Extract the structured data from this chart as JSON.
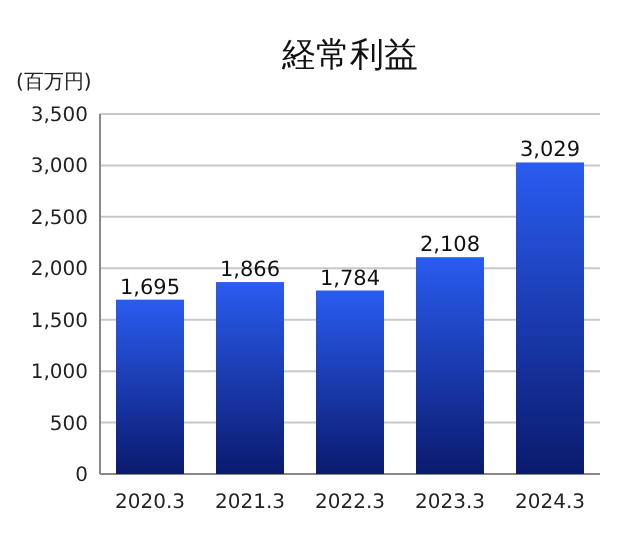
{
  "chart_data": {
    "type": "bar",
    "title": "経常利益",
    "ylabel": "(百万円)",
    "categories": [
      "2020.3",
      "2021.3",
      "2022.3",
      "2023.3",
      "2024.3"
    ],
    "values": [
      1695,
      1866,
      1784,
      2108,
      3029
    ],
    "color": "#2a5cf0",
    "value_labels": [
      "1,695",
      "1,866",
      "1,784",
      "2,108",
      "3,029"
    ],
    "ylim": [
      0,
      3500
    ],
    "yticks": [
      {
        "value": 0,
        "label": "0"
      },
      {
        "value": 500,
        "label": "500"
      },
      {
        "value": 1000,
        "label": "1,000"
      },
      {
        "value": 1500,
        "label": "1,500"
      },
      {
        "value": 2000,
        "label": "2,000"
      },
      {
        "value": 2500,
        "label": "2,500"
      },
      {
        "value": 3000,
        "label": "3,000"
      },
      {
        "value": 3500,
        "label": "3,500"
      }
    ],
    "grid": "y"
  }
}
